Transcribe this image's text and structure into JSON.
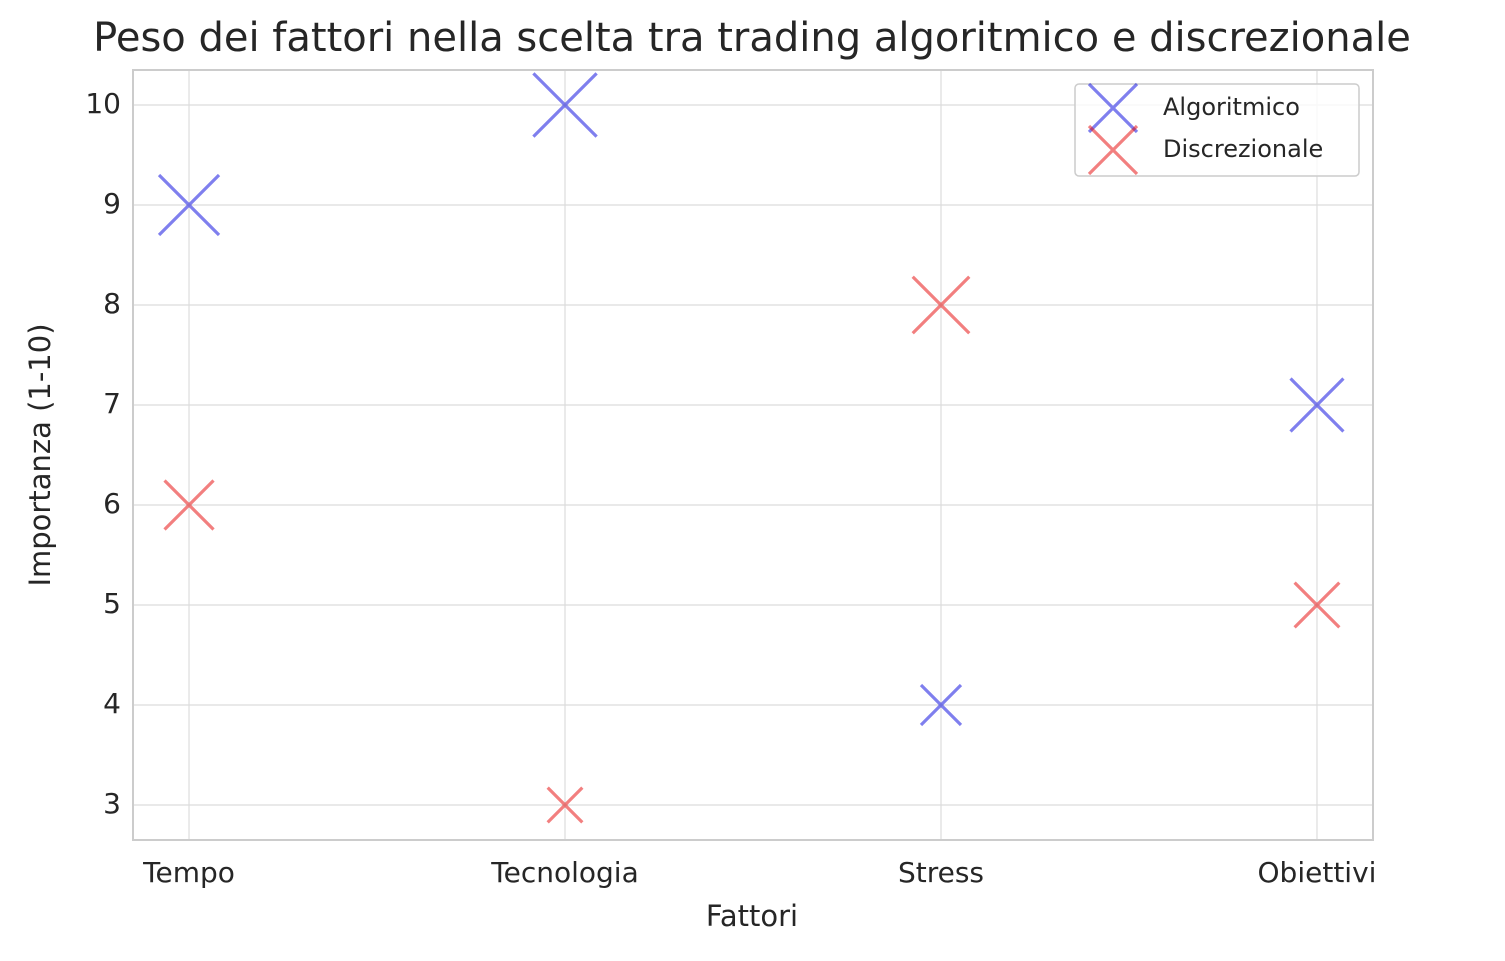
{
  "chart_data": {
    "type": "scatter",
    "title": "Peso dei fattori nella scelta tra trading algoritmico e discrezionale",
    "xlabel": "Fattori",
    "ylabel": "Importanza (1-10)",
    "categories": [
      "Tempo",
      "Tecnologia",
      "Stress",
      "Obiettivi"
    ],
    "series": [
      {
        "name": "Algoritmico",
        "color": "#0000dd",
        "values": [
          9,
          10,
          4,
          7
        ]
      },
      {
        "name": "Discrezionale",
        "color": "#e60000",
        "values": [
          6,
          3,
          8,
          5
        ]
      }
    ],
    "ylim": [
      2.65,
      10.35
    ],
    "yticks": [
      3,
      4,
      5,
      6,
      7,
      8,
      9,
      10
    ],
    "grid": true,
    "legend": "upper right"
  }
}
